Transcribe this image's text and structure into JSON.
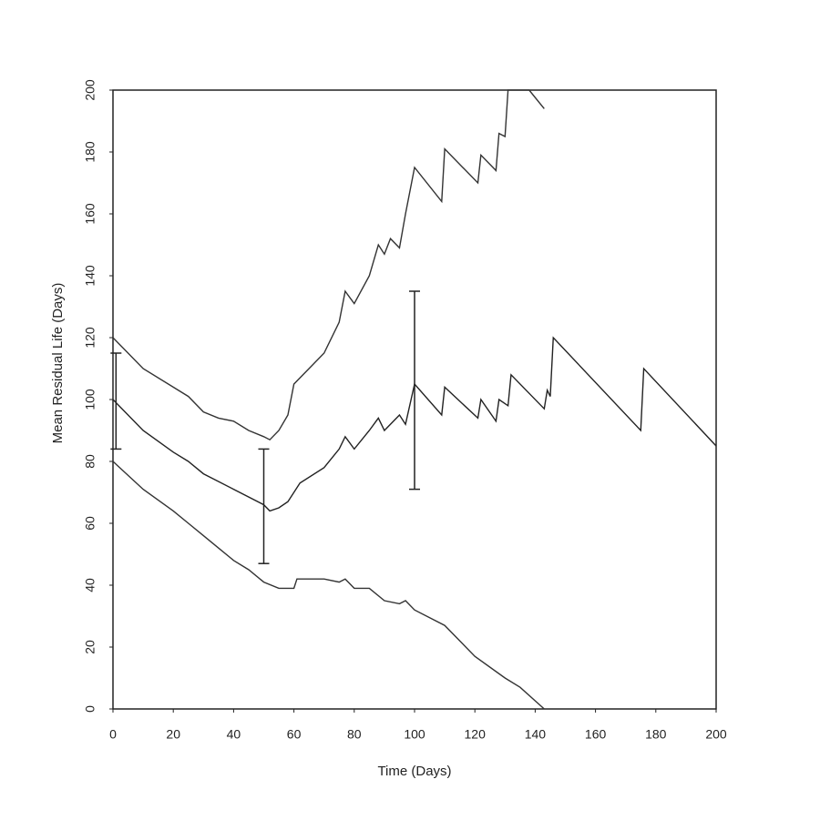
{
  "chart_data": {
    "type": "line",
    "xlabel": "Time (Days)",
    "ylabel": "Mean Residual Life (Days)",
    "xlim": [
      0,
      200
    ],
    "ylim": [
      0,
      200
    ],
    "xticks": [
      0,
      20,
      40,
      60,
      80,
      100,
      120,
      140,
      160,
      180,
      200
    ],
    "yticks": [
      0,
      20,
      40,
      60,
      80,
      100,
      120,
      140,
      160,
      180,
      200
    ],
    "series": [
      {
        "color": "#222222",
        "x": [
          0,
          10,
          20,
          25,
          30,
          40,
          50,
          52,
          55,
          58,
          60,
          62,
          70,
          75,
          77,
          80,
          85,
          88,
          90,
          95,
          97,
          100,
          109,
          110,
          121,
          122,
          127,
          128,
          131,
          132,
          143,
          144,
          145,
          146,
          175,
          176,
          200
        ],
        "values": [
          100,
          90,
          83,
          80,
          76,
          71,
          66,
          64,
          65,
          67,
          70,
          73,
          78,
          84,
          88,
          84,
          90,
          94,
          90,
          95,
          92,
          105,
          95,
          104,
          94,
          100,
          93,
          100,
          98,
          108,
          97,
          103,
          101,
          120,
          90,
          110,
          85
        ]
      },
      {
        "color": "#333333",
        "x": [
          0,
          10,
          20,
          25,
          30,
          35,
          40,
          45,
          50,
          52,
          55,
          58,
          60,
          65,
          70,
          75,
          77,
          80,
          85,
          88,
          90,
          92,
          95,
          97,
          100,
          109,
          110,
          121,
          122,
          127,
          128,
          130,
          131,
          138,
          143
        ],
        "values": [
          120,
          110,
          104,
          101,
          96,
          94,
          93,
          90,
          88,
          87,
          90,
          95,
          105,
          110,
          115,
          125,
          135,
          131,
          140,
          150,
          147,
          152,
          149,
          160,
          175,
          164,
          181,
          170,
          179,
          174,
          186,
          185,
          200,
          200,
          194
        ]
      },
      {
        "color": "#333333",
        "x": [
          0,
          10,
          20,
          25,
          30,
          35,
          40,
          45,
          50,
          55,
          60,
          61,
          70,
          75,
          77,
          80,
          85,
          90,
          95,
          97,
          100,
          110,
          120,
          130,
          135,
          143
        ],
        "values": [
          80,
          71,
          64,
          60,
          56,
          52,
          48,
          45,
          41,
          39,
          39,
          42,
          42,
          41,
          42,
          39,
          39,
          35,
          34,
          35,
          32,
          27,
          17,
          10,
          7,
          0
        ]
      }
    ],
    "intervals": [
      {
        "x": 1,
        "low": 84,
        "high": 115
      },
      {
        "x": 50,
        "low": 47,
        "high": 84
      },
      {
        "x": 100,
        "low": 71,
        "high": 135
      }
    ]
  }
}
